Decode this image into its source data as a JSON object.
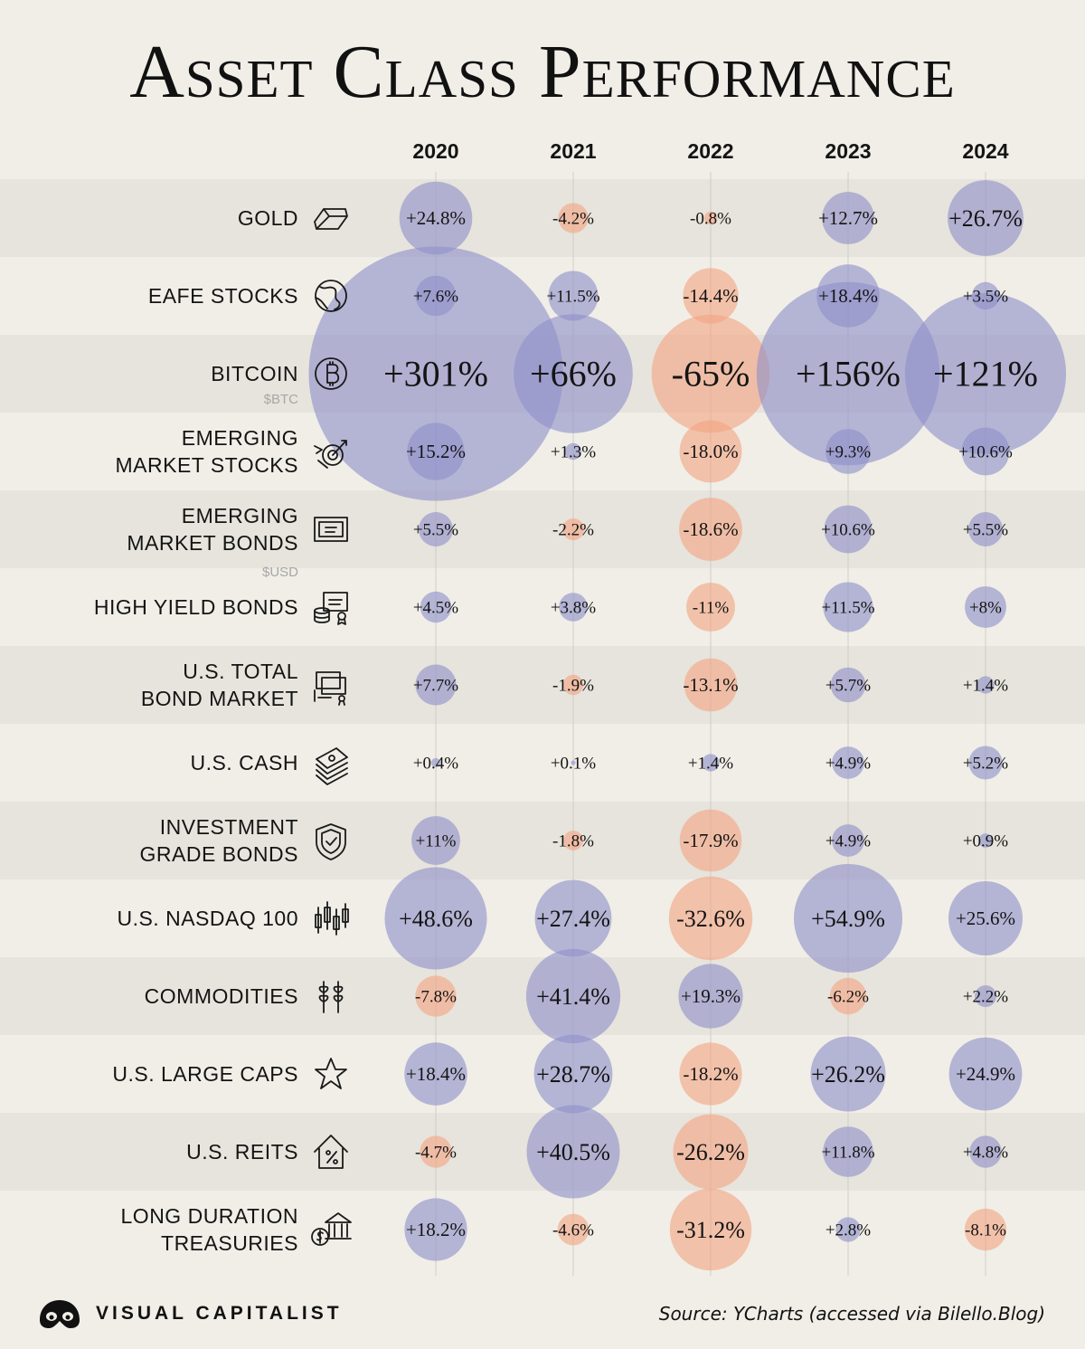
{
  "title": "Asset Class Performance",
  "brand": "VISUAL CAPITALIST",
  "source": "Source: YCharts (accessed via Bilello.Blog)",
  "colors": {
    "positive": "#8f8fc9",
    "negative": "#f3a583",
    "background": "#f0eee7",
    "band": "#e6e4dc"
  },
  "chart_data": {
    "type": "bubble-table",
    "columns": [
      "2020",
      "2021",
      "2022",
      "2023",
      "2024"
    ],
    "rows": [
      {
        "label": [
          "GOLD"
        ],
        "sub": "",
        "icon": "gold-bar-icon",
        "values": [
          24.8,
          -4.2,
          -0.8,
          12.7,
          26.7
        ],
        "labels": [
          "+24.8%",
          "-4.2%",
          "-0.8%",
          "+12.7%",
          "+26.7%"
        ]
      },
      {
        "label": [
          "EAFE STOCKS"
        ],
        "sub": "",
        "icon": "globe-icon",
        "values": [
          7.6,
          11.5,
          -14.4,
          18.4,
          3.5
        ],
        "labels": [
          "+7.6%",
          "+11.5%",
          "-14.4%",
          "+18.4%",
          "+3.5%"
        ]
      },
      {
        "label": [
          "BITCOIN"
        ],
        "sub": "$BTC",
        "icon": "bitcoin-icon",
        "values": [
          301,
          66,
          -65,
          156,
          121
        ],
        "labels": [
          "+301%",
          "+66%",
          "-65%",
          "+156%",
          "+121%"
        ]
      },
      {
        "label": [
          "EMERGING",
          "MARKET STOCKS"
        ],
        "sub": "",
        "icon": "target-arrow-icon",
        "values": [
          15.2,
          1.3,
          -18.0,
          9.3,
          10.6
        ],
        "labels": [
          "+15.2%",
          "+1.3%",
          "-18.0%",
          "+9.3%",
          "+10.6%"
        ]
      },
      {
        "label": [
          "EMERGING",
          "MARKET BONDS"
        ],
        "sub": "$USD",
        "icon": "bond-certificate-icon",
        "values": [
          5.5,
          -2.2,
          -18.6,
          10.6,
          5.5
        ],
        "labels": [
          "+5.5%",
          "-2.2%",
          "-18.6%",
          "+10.6%",
          "+5.5%"
        ]
      },
      {
        "label": [
          "HIGH YIELD BONDS"
        ],
        "sub": "",
        "icon": "bond-coins-icon",
        "values": [
          4.5,
          3.8,
          -11,
          11.5,
          8
        ],
        "labels": [
          "+4.5%",
          "+3.8%",
          "-11%",
          "+11.5%",
          "+8%"
        ]
      },
      {
        "label": [
          "U.S. TOTAL",
          "BOND MARKET"
        ],
        "sub": "",
        "icon": "bond-stack-icon",
        "values": [
          7.7,
          -1.9,
          -13.1,
          5.7,
          1.4
        ],
        "labels": [
          "+7.7%",
          "-1.9%",
          "-13.1%",
          "+5.7%",
          "+1.4%"
        ]
      },
      {
        "label": [
          "U.S. CASH"
        ],
        "sub": "",
        "icon": "cash-stack-icon",
        "values": [
          0.4,
          0.1,
          1.4,
          4.9,
          5.2
        ],
        "labels": [
          "+0.4%",
          "+0.1%",
          "+1.4%",
          "+4.9%",
          "+5.2%"
        ]
      },
      {
        "label": [
          "INVESTMENT",
          "GRADE BONDS"
        ],
        "sub": "",
        "icon": "shield-check-icon",
        "values": [
          11,
          -1.8,
          -17.9,
          4.9,
          0.9
        ],
        "labels": [
          "+11%",
          "-1.8%",
          "-17.9%",
          "+4.9%",
          "+0.9%"
        ]
      },
      {
        "label": [
          "U.S. NASDAQ 100"
        ],
        "sub": "",
        "icon": "candlestick-icon",
        "values": [
          48.6,
          27.4,
          -32.6,
          54.9,
          25.6
        ],
        "labels": [
          "+48.6%",
          "+27.4%",
          "-32.6%",
          "+54.9%",
          "+25.6%"
        ]
      },
      {
        "label": [
          "COMMODITIES"
        ],
        "sub": "",
        "icon": "wheat-icon",
        "values": [
          -7.8,
          41.4,
          19.3,
          -6.2,
          2.2
        ],
        "labels": [
          "-7.8%",
          "+41.4%",
          "+19.3%",
          "-6.2%",
          "+2.2%"
        ]
      },
      {
        "label": [
          "U.S. LARGE CAPS"
        ],
        "sub": "",
        "icon": "star-icon",
        "values": [
          18.4,
          28.7,
          -18.2,
          26.2,
          24.9
        ],
        "labels": [
          "+18.4%",
          "+28.7%",
          "-18.2%",
          "+26.2%",
          "+24.9%"
        ]
      },
      {
        "label": [
          "U.S. REITS"
        ],
        "sub": "",
        "icon": "house-percent-icon",
        "values": [
          -4.7,
          40.5,
          -26.2,
          11.8,
          4.8
        ],
        "labels": [
          "-4.7%",
          "+40.5%",
          "-26.2%",
          "+11.8%",
          "+4.8%"
        ]
      },
      {
        "label": [
          "LONG DURATION",
          "TREASURIES"
        ],
        "sub": "",
        "icon": "bank-dollar-icon",
        "values": [
          18.2,
          -4.6,
          -31.2,
          2.8,
          -8.1
        ],
        "labels": [
          "+18.2%",
          "-4.6%",
          "-31.2%",
          "+2.8%",
          "-8.1%"
        ]
      }
    ]
  }
}
